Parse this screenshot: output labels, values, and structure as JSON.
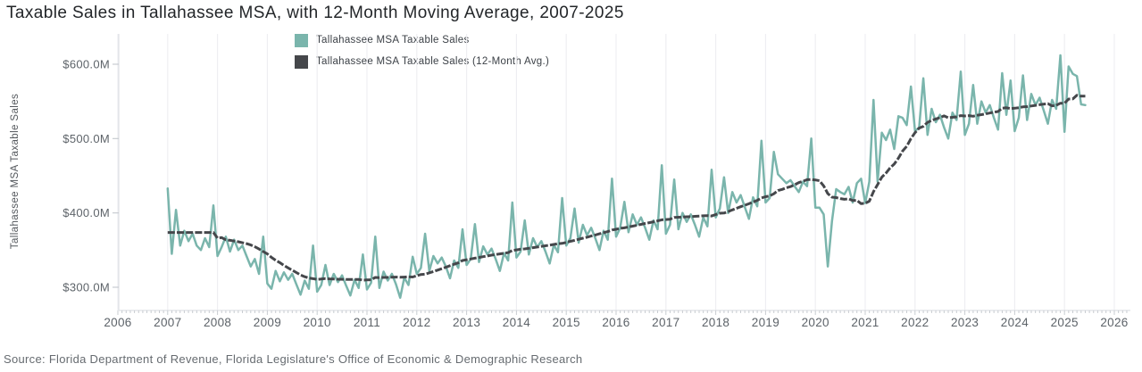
{
  "title": "Taxable Sales in Tallahassee MSA, with 12-Month Moving Average, 2007-2025",
  "y_axis_title": "Tallahassee MSA Taxable Sales",
  "source_note": "Source: Florida Department of Revenue, Florida Legislature's Office of Economic & Demographic Research",
  "legend": [
    {
      "label": "Tallahassee MSA Taxable Sales",
      "color": "#7ab5ac"
    },
    {
      "label": "Tallahassee MSA Taxable Sales (12-Month Avg.)",
      "color": "#45474b"
    }
  ],
  "colors": {
    "monthly_line": "#7ab5ac",
    "moving_avg_line": "#45474b",
    "gridline": "#ededf1",
    "axis_line": "#dfe1e5",
    "tick_mark": "#c8ccd1"
  },
  "chart_data": {
    "type": "line",
    "title": "Taxable Sales in Tallahassee MSA, with 12-Month Moving Average, 2007-2025",
    "unit": "USD millions",
    "frequency": "monthly",
    "x_start": "2007-01",
    "x_end": "2025-06",
    "xlim": [
      2006,
      2026.33
    ],
    "ylim_display": [
      269,
      641
    ],
    "grid": "vertical-only",
    "legend_position": "top-center",
    "x_ticks": [
      2006,
      2007,
      2008,
      2009,
      2010,
      2011,
      2012,
      2013,
      2014,
      2015,
      2016,
      2017,
      2018,
      2019,
      2020,
      2021,
      2022,
      2023,
      2024,
      2025,
      2026
    ],
    "y_ticks": [
      {
        "value": 600,
        "label": "$600.0M"
      },
      {
        "value": 500,
        "label": "$500.0M"
      },
      {
        "value": 400,
        "label": "$400.0M"
      },
      {
        "value": 300,
        "label": "$300.0M"
      }
    ],
    "series": [
      {
        "name": "Tallahassee MSA Taxable Sales",
        "color": "#7ab5ac",
        "monthly": [
          {
            "year": 2007,
            "values": [
              433,
              345,
              404,
              356,
              376,
              362,
              372,
              356,
              350,
              366,
              354,
              410
            ]
          },
          {
            "year": 2008,
            "values": [
              342,
              354,
              368,
              348,
              364,
              350,
              356,
              342,
              328,
              338,
              318,
              368
            ]
          },
          {
            "year": 2009,
            "values": [
              305,
              298,
              322,
              308,
              320,
              310,
              318,
              304,
              290,
              309,
              298,
              356
            ]
          },
          {
            "year": 2010,
            "values": [
              294,
              303,
              330,
              303,
              318,
              307,
              316,
              302,
              289,
              310,
              299,
              344
            ]
          },
          {
            "year": 2011,
            "values": [
              297,
              306,
              368,
              299,
              321,
              309,
              318,
              304,
              286,
              313,
              303,
              341
            ]
          },
          {
            "year": 2012,
            "values": [
              318,
              326,
              372,
              322,
              342,
              332,
              340,
              328,
              312,
              336,
              326,
              378
            ]
          },
          {
            "year": 2013,
            "values": [
              330,
              338,
              385,
              334,
              355,
              344,
              352,
              338,
              322,
              346,
              336,
              414
            ]
          },
          {
            "year": 2014,
            "values": [
              340,
              348,
              390,
              344,
              366,
              354,
              362,
              348,
              332,
              357,
              347,
              420
            ]
          },
          {
            "year": 2015,
            "values": [
              356,
              366,
              406,
              360,
              384,
              370,
              380,
              366,
              350,
              376,
              364,
              446
            ]
          },
          {
            "year": 2016,
            "values": [
              368,
              380,
              415,
              374,
              398,
              384,
              394,
              380,
              364,
              390,
              378,
              464
            ]
          },
          {
            "year": 2017,
            "values": [
              372,
              384,
              445,
              378,
              400,
              388,
              398,
              384,
              368,
              394,
              382,
              458
            ]
          },
          {
            "year": 2018,
            "values": [
              394,
              406,
              448,
              400,
              428,
              414,
              424,
              408,
              392,
              421,
              409,
              497
            ]
          },
          {
            "year": 2019,
            "values": [
              414,
              420,
              482,
              452,
              446,
              440,
              444,
              436,
              428,
              442,
              436,
              500
            ]
          },
          {
            "year": 2020,
            "values": [
              407,
              407,
              398,
              328,
              389,
              432,
              428,
              425,
              435,
              414,
              440,
              446
            ]
          },
          {
            "year": 2021,
            "values": [
              413,
              442,
              552,
              442,
              508,
              498,
              512,
              486,
              530,
              528,
              518,
              570
            ]
          },
          {
            "year": 2022,
            "values": [
              510,
              515,
              581,
              505,
              540,
              522,
              532,
              515,
              500,
              535,
              525,
              590
            ]
          },
          {
            "year": 2023,
            "values": [
              505,
              520,
              572,
              520,
              550,
              535,
              545,
              528,
              512,
              588,
              532,
              578
            ]
          },
          {
            "year": 2024,
            "values": [
              510,
              528,
              585,
              525,
              560,
              545,
              555,
              538,
              520,
              552,
              540,
              612
            ]
          },
          {
            "year": 2025,
            "values": [
              509,
              597,
              587,
              584,
              546,
              545
            ]
          }
        ]
      },
      {
        "name": "Tallahassee MSA Taxable Sales (12-Month Avg.)",
        "color": "#45474b",
        "derived": "trailing 12-month moving average of the monthly series",
        "ma_window": 12
      }
    ]
  }
}
